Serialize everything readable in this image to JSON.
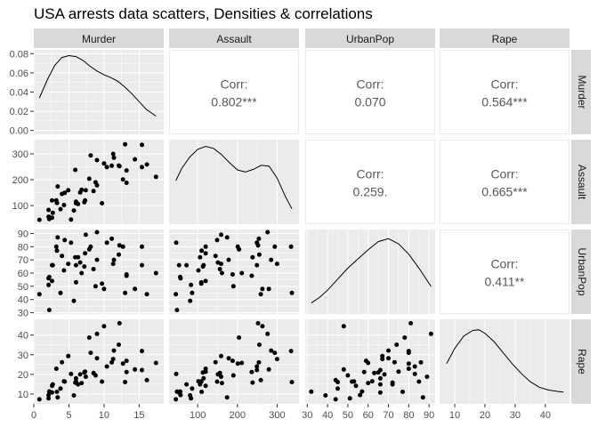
{
  "title": "USA arrests data scatters, Densities & correlations",
  "colors": {
    "panel_bg": "#ebebeb",
    "grid": "#ffffff",
    "strip_bg": "#d9d9d9",
    "text": "#4d4d4d",
    "corr_text": "#595959",
    "point": "#000000"
  },
  "chart_data": {
    "type": "scatter",
    "variables": [
      "Murder",
      "Assault",
      "UrbanPop",
      "Rape"
    ],
    "axes": {
      "Murder": {
        "range": [
          0,
          18.5
        ],
        "ticks": [
          "0",
          "5",
          "10",
          "15"
        ],
        "tick_values": [
          0,
          5,
          10,
          15
        ]
      },
      "Assault": {
        "range": [
          28,
          355
        ],
        "ticks": [
          "100",
          "200",
          "300"
        ],
        "tick_values": [
          100,
          200,
          300
        ]
      },
      "UrbanPop": {
        "range": [
          29,
          93
        ],
        "ticks": [
          "30",
          "40",
          "50",
          "60",
          "70",
          "80",
          "90"
        ],
        "tick_values": [
          30,
          40,
          50,
          60,
          70,
          80,
          90
        ]
      },
      "Rape": {
        "range": [
          5,
          48
        ],
        "ticks": [
          "10",
          "20",
          "30",
          "40"
        ],
        "tick_values": [
          10,
          20,
          30,
          40
        ]
      }
    },
    "density_axis": {
      "range": [
        -0.004,
        0.084
      ],
      "ticks": [
        "0.00",
        "0.02",
        "0.04",
        "0.06",
        "0.08"
      ],
      "tick_values": [
        0,
        0.02,
        0.04,
        0.06,
        0.08
      ]
    },
    "correlations": [
      {
        "row": "Murder",
        "col": "Assault",
        "label": "Corr:",
        "value": "0.802***"
      },
      {
        "row": "Murder",
        "col": "UrbanPop",
        "label": "Corr:",
        "value": "0.070"
      },
      {
        "row": "Murder",
        "col": "Rape",
        "label": "Corr:",
        "value": "0.564***"
      },
      {
        "row": "Assault",
        "col": "UrbanPop",
        "label": "Corr:",
        "value": "0.259."
      },
      {
        "row": "Assault",
        "col": "Rape",
        "label": "Corr:",
        "value": "0.665***"
      },
      {
        "row": "UrbanPop",
        "col": "Rape",
        "label": "Corr:",
        "value": "0.411**"
      }
    ],
    "observations": {
      "Murder": [
        13.2,
        10.0,
        8.1,
        8.8,
        9.0,
        7.9,
        3.3,
        5.9,
        15.4,
        17.4,
        5.3,
        2.6,
        10.4,
        7.2,
        2.2,
        6.0,
        9.7,
        15.4,
        2.1,
        11.3,
        4.4,
        12.1,
        2.7,
        16.1,
        9.0,
        6.0,
        4.3,
        12.2,
        2.1,
        7.4,
        11.4,
        11.1,
        13.0,
        0.8,
        7.3,
        6.6,
        4.9,
        6.3,
        3.4,
        14.4,
        3.8,
        13.2,
        12.7,
        3.2,
        2.2,
        8.5,
        4.0,
        5.7,
        2.6,
        6.8
      ],
      "Assault": [
        236,
        263,
        294,
        190,
        276,
        204,
        110,
        238,
        335,
        211,
        46,
        120,
        249,
        113,
        56,
        115,
        109,
        249,
        83,
        300,
        149,
        255,
        72,
        259,
        178,
        109,
        102,
        252,
        57,
        159,
        285,
        254,
        337,
        45,
        120,
        151,
        159,
        106,
        174,
        279,
        86,
        188,
        201,
        120,
        48,
        156,
        145,
        81,
        53,
        161
      ],
      "UrbanPop": [
        58,
        48,
        80,
        50,
        91,
        78,
        77,
        72,
        80,
        60,
        83,
        54,
        83,
        65,
        57,
        66,
        52,
        66,
        51,
        67,
        85,
        74,
        66,
        44,
        70,
        53,
        62,
        81,
        56,
        89,
        70,
        86,
        45,
        44,
        75,
        68,
        67,
        72,
        87,
        48,
        45,
        59,
        80,
        80,
        32,
        63,
        73,
        39,
        66,
        60
      ],
      "Rape": [
        21.2,
        44.5,
        31.0,
        19.5,
        40.6,
        38.7,
        11.1,
        15.8,
        31.9,
        25.8,
        20.2,
        14.2,
        24.0,
        21.0,
        11.3,
        18.0,
        16.3,
        22.2,
        7.8,
        27.8,
        16.3,
        35.1,
        14.9,
        17.1,
        28.2,
        16.4,
        16.5,
        46.0,
        9.5,
        18.8,
        32.1,
        26.1,
        16.1,
        7.3,
        21.4,
        20.0,
        29.3,
        14.9,
        8.3,
        22.5,
        12.8,
        26.9,
        25.5,
        22.9,
        11.2,
        20.7,
        26.2,
        9.3,
        10.8,
        15.6
      ]
    },
    "densities": {
      "Murder": {
        "x": [
          0.8,
          2,
          3,
          4,
          5,
          6,
          7,
          8,
          9,
          10,
          11,
          12,
          13,
          14,
          15,
          16,
          17.4
        ],
        "y": [
          0.034,
          0.054,
          0.068,
          0.076,
          0.078,
          0.077,
          0.073,
          0.067,
          0.062,
          0.058,
          0.055,
          0.051,
          0.045,
          0.038,
          0.03,
          0.022,
          0.015
        ]
      },
      "Assault": {
        "x": [
          45,
          60,
          80,
          100,
          120,
          140,
          160,
          180,
          200,
          220,
          240,
          260,
          280,
          300,
          320,
          337
        ],
        "y": [
          0.0022,
          0.00268,
          0.00312,
          0.00342,
          0.00354,
          0.00346,
          0.00322,
          0.0029,
          0.00262,
          0.00254,
          0.00264,
          0.0028,
          0.00276,
          0.0023,
          0.0016,
          0.0011
        ]
      },
      "UrbanPop": {
        "x": [
          32,
          36,
          40,
          45,
          50,
          55,
          60,
          65,
          70,
          75,
          80,
          85,
          91
        ],
        "y": [
          0.0045,
          0.006,
          0.008,
          0.011,
          0.014,
          0.0165,
          0.019,
          0.0212,
          0.022,
          0.0206,
          0.0178,
          0.014,
          0.009
        ]
      },
      "Rape": {
        "x": [
          7.3,
          10,
          13,
          16,
          18,
          20,
          23,
          26,
          29,
          32,
          35,
          38,
          41,
          44,
          46
        ],
        "y": [
          0.026,
          0.037,
          0.046,
          0.05,
          0.0505,
          0.048,
          0.042,
          0.034,
          0.026,
          0.019,
          0.013,
          0.009,
          0.007,
          0.006,
          0.0055
        ]
      }
    },
    "density_ylims": {
      "Murder": [
        -0.004,
        0.084
      ],
      "Assault": [
        0.0005,
        0.0038
      ],
      "UrbanPop": [
        0.0015,
        0.0245
      ],
      "Rape": [
        -0.003,
        0.058
      ]
    }
  }
}
